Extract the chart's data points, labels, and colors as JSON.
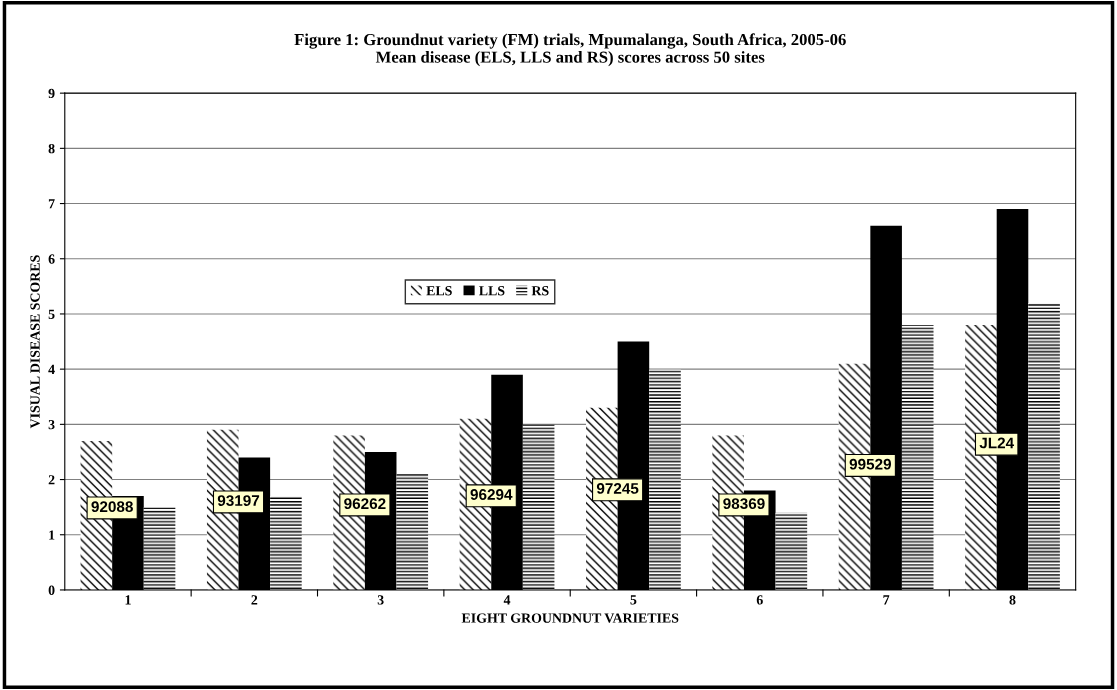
{
  "chart_data": {
    "type": "bar",
    "title": "Figure 1: Groundnut variety (FM) trials, Mpumalanga, South Africa, 2005-06\nMean disease (ELS, LLS and RS) scores across 50 sites",
    "xlabel": "EIGHT GROUNDNUT VARIETIES",
    "ylabel": "VISUAL DISEASE SCORES",
    "categories": [
      "1",
      "2",
      "3",
      "4",
      "5",
      "6",
      "7",
      "8"
    ],
    "series": [
      {
        "name": "ELS",
        "color": "#000000",
        "values": [
          2.7,
          2.9,
          2.8,
          3.1,
          3.3,
          2.8,
          4.1,
          4.8
        ]
      },
      {
        "name": "LLS",
        "color": "#000000",
        "values": [
          1.7,
          2.4,
          2.5,
          3.9,
          4.5,
          1.8,
          6.6,
          6.9
        ]
      },
      {
        "name": "RS",
        "color": "#000000",
        "values": [
          1.5,
          1.7,
          2.1,
          3.0,
          4.0,
          1.4,
          4.8,
          5.2
        ]
      }
    ],
    "annotations": [
      "92088",
      "93197",
      "96262",
      "96294",
      "97245",
      "98369",
      "99529",
      "JL24"
    ],
    "ylim": [
      0,
      9
    ],
    "yticks": [
      0,
      1,
      2,
      3,
      4,
      5,
      6,
      7,
      8,
      9
    ],
    "grid": "y",
    "legend": "center left"
  }
}
